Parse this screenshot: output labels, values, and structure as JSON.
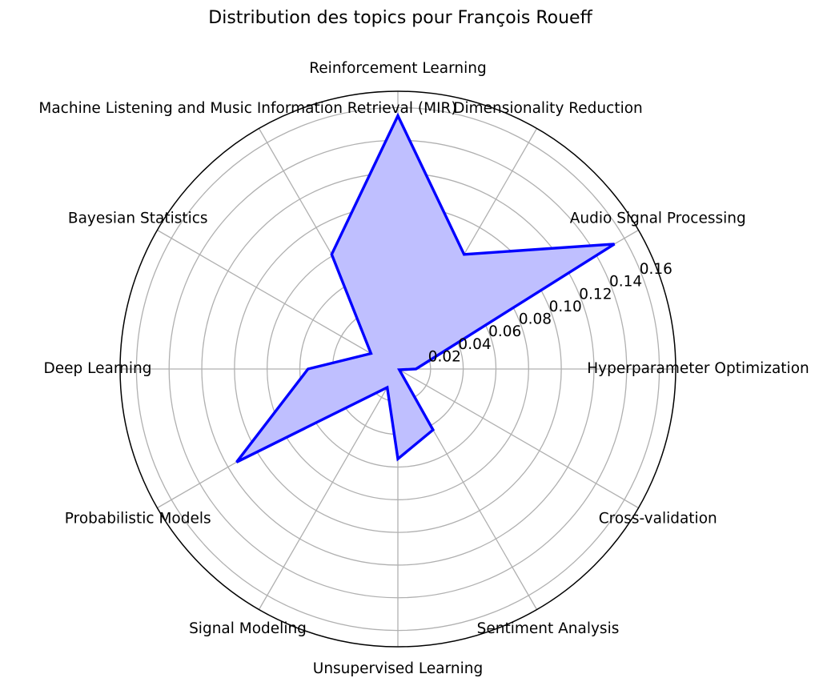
{
  "chart_data": {
    "type": "radar",
    "title": "Distribution des topics pour François Roueff",
    "categories": [
      "Hyperparameter Optimization",
      "Audio Signal Processing",
      "Dimensionality Reduction",
      "Reinforcement Learning",
      "Machine Listening and Music Information Retrieval (MIR)",
      "Bayesian Statistics",
      "Deep Learning",
      "Probabilistic Models",
      "Signal Modeling",
      "Unsupervised Learning",
      "Sentiment Analysis",
      "Cross-validation"
    ],
    "series": [
      {
        "values": [
          0.011,
          0.153,
          0.081,
          0.155,
          0.081,
          0.019,
          0.055,
          0.114,
          0.013,
          0.055,
          0.043,
          0.001
        ],
        "color": "#0000ff",
        "fill_color": "#bfbfff"
      }
    ],
    "rlim": [
      0,
      0.17
    ],
    "r_ticks": [
      0.02,
      0.04,
      0.06,
      0.08,
      0.1,
      0.12,
      0.14,
      0.16
    ],
    "r_tick_labels": [
      "0.02",
      "0.04",
      "0.06",
      "0.08",
      "0.10",
      "0.12",
      "0.14",
      "0.16"
    ],
    "grid": true
  }
}
